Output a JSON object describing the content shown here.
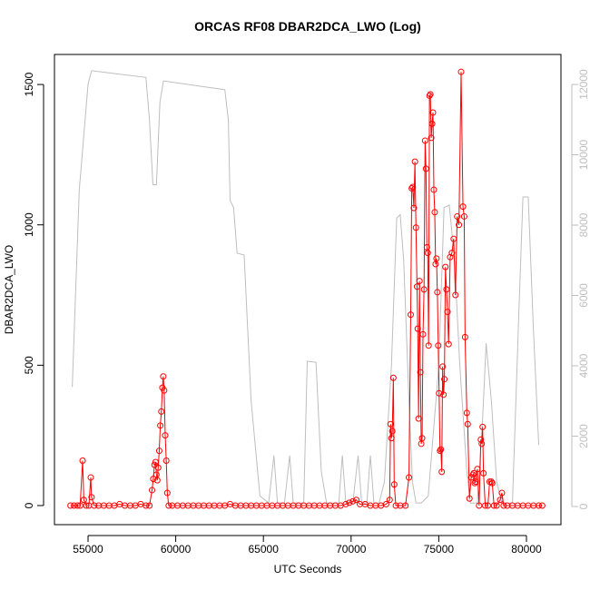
{
  "chart_data": {
    "type": "line",
    "title": "ORCAS RF08 DBAR2DCA_LWO (Log)",
    "xlabel": "UTC Seconds",
    "ylabel": "DBAR2DCA_LWO",
    "xlim": [
      53085,
      81967
    ],
    "xticks": [
      55000,
      60000,
      65000,
      70000,
      75000,
      80000
    ],
    "ylim": [
      -68,
      1607
    ],
    "yticks": [
      0,
      500,
      1000,
      1500
    ],
    "y2lim": [
      -516,
      12852
    ],
    "y2ticks": [
      0,
      2000,
      4000,
      6000,
      8000,
      10000,
      12000
    ],
    "series": [
      {
        "color": "#bebebe",
        "axis": "y2",
        "markers": false,
        "x": [
          54100,
          54500,
          55000,
          55200,
          58300,
          58500,
          58700,
          58900,
          59100,
          59300,
          62800,
          63000,
          63100,
          63300,
          63500,
          63900,
          64300,
          64800,
          65300,
          65600,
          65800,
          66200,
          66500,
          66700,
          67300,
          67500,
          68000,
          68300,
          68600,
          69300,
          69500,
          69700,
          70100,
          70400,
          70600,
          70900,
          71100,
          71300,
          71600,
          71900,
          72300,
          72600,
          72800,
          73000,
          73300,
          73500,
          73700,
          74000,
          74400,
          75000,
          75300,
          75600,
          75900,
          76200,
          76600,
          76800,
          77200,
          77500,
          77700,
          78000,
          78300,
          78600,
          79200,
          79600,
          79800,
          80100,
          80400,
          80700
        ],
        "values": [
          3400,
          9000,
          12000,
          12390,
          12200,
          11000,
          9150,
          9150,
          11500,
          12100,
          11850,
          11000,
          8700,
          8500,
          7200,
          7150,
          3000,
          300,
          100,
          1450,
          100,
          100,
          1450,
          100,
          100,
          4130,
          4100,
          1000,
          100,
          100,
          1450,
          100,
          100,
          1450,
          100,
          100,
          1450,
          100,
          100,
          700,
          4000,
          8200,
          8300,
          7000,
          3000,
          700,
          100,
          100,
          300,
          4000,
          8500,
          8570,
          7000,
          4000,
          1000,
          100,
          100,
          2500,
          4640,
          3000,
          700,
          100,
          100,
          6000,
          8800,
          8800,
          5000,
          1750
        ]
      },
      {
        "color": "#ff0000",
        "markers": true,
        "x": [
          54000,
          54200,
          54400,
          54550,
          54690,
          54760,
          54900,
          55050,
          55155,
          55200,
          55350,
          55600,
          55900,
          56200,
          56500,
          56800,
          57100,
          57400,
          57700,
          58000,
          58300,
          58500,
          58650,
          58720,
          58790,
          58850,
          58900,
          58950,
          59000,
          59060,
          59120,
          59180,
          59240,
          59290,
          59340,
          59400,
          59460,
          59520,
          59600,
          59800,
          60100,
          60400,
          60700,
          61000,
          61300,
          61600,
          61900,
          62200,
          62500,
          62800,
          63100,
          63400,
          63700,
          64000,
          64300,
          64600,
          64900,
          65200,
          65500,
          65800,
          66100,
          66400,
          66700,
          67000,
          67300,
          67600,
          67900,
          68200,
          68500,
          68800,
          69100,
          69400,
          69700,
          69900,
          70100,
          70300,
          70500,
          70800,
          71100,
          71400,
          71700,
          72000,
          72200,
          72250,
          72300,
          72350,
          72410,
          72460,
          72550,
          72800,
          73100,
          73300,
          73400,
          73460,
          73520,
          73580,
          73640,
          73700,
          73760,
          73800,
          73850,
          73900,
          73950,
          74000,
          74050,
          74100,
          74160,
          74220,
          74270,
          74320,
          74370,
          74420,
          74470,
          74520,
          74570,
          74620,
          74670,
          74720,
          74770,
          74820,
          74870,
          74920,
          74970,
          75020,
          75070,
          75120,
          75170,
          75220,
          75270,
          75320,
          75380,
          75440,
          75500,
          75560,
          75650,
          75750,
          75850,
          75950,
          76050,
          76150,
          76273,
          76380,
          76450,
          76500,
          76600,
          76650,
          76750,
          76850,
          76950,
          77000,
          77050,
          77100,
          77200,
          77300,
          77400,
          77450,
          77500,
          77550,
          77650,
          77800,
          77900,
          78000,
          78050,
          78150,
          78300,
          78500,
          78600,
          78700,
          78900,
          79200,
          79500,
          79800,
          80100,
          80400,
          80700,
          80900
        ],
        "values": [
          0,
          0,
          0,
          0,
          160,
          20,
          0,
          0,
          100,
          30,
          0,
          0,
          0,
          0,
          0,
          5,
          0,
          0,
          0,
          5,
          0,
          0,
          55,
          95,
          145,
          155,
          110,
          90,
          135,
          195,
          285,
          335,
          420,
          460,
          410,
          250,
          160,
          45,
          0,
          0,
          0,
          0,
          0,
          0,
          0,
          0,
          0,
          0,
          0,
          0,
          5,
          0,
          0,
          0,
          0,
          0,
          0,
          0,
          0,
          0,
          0,
          0,
          0,
          0,
          0,
          0,
          0,
          0,
          0,
          0,
          0,
          0,
          5,
          10,
          15,
          20,
          5,
          5,
          0,
          0,
          0,
          5,
          20,
          290,
          240,
          265,
          455,
          75,
          0,
          0,
          0,
          100,
          680,
          1130,
          1135,
          1060,
          1225,
          990,
          780,
          630,
          310,
          800,
          475,
          220,
          240,
          610,
          770,
          1300,
          1200,
          920,
          900,
          570,
          1460,
          1465,
          1310,
          1360,
          1400,
          1125,
          1045,
          860,
          880,
          760,
          570,
          400,
          195,
          200,
          120,
          495,
          395,
          450,
          850,
          770,
          690,
          575,
          885,
          900,
          950,
          750,
          1030,
          1000,
          1545,
          1065,
          1030,
          600,
          330,
          290,
          25,
          100,
          110,
          115,
          80,
          85,
          130,
          0,
          235,
          220,
          280,
          115,
          0,
          0,
          85,
          85,
          80,
          0,
          0,
          20,
          45,
          0,
          0,
          0,
          0,
          0,
          0,
          0,
          0,
          0
        ]
      }
    ]
  }
}
